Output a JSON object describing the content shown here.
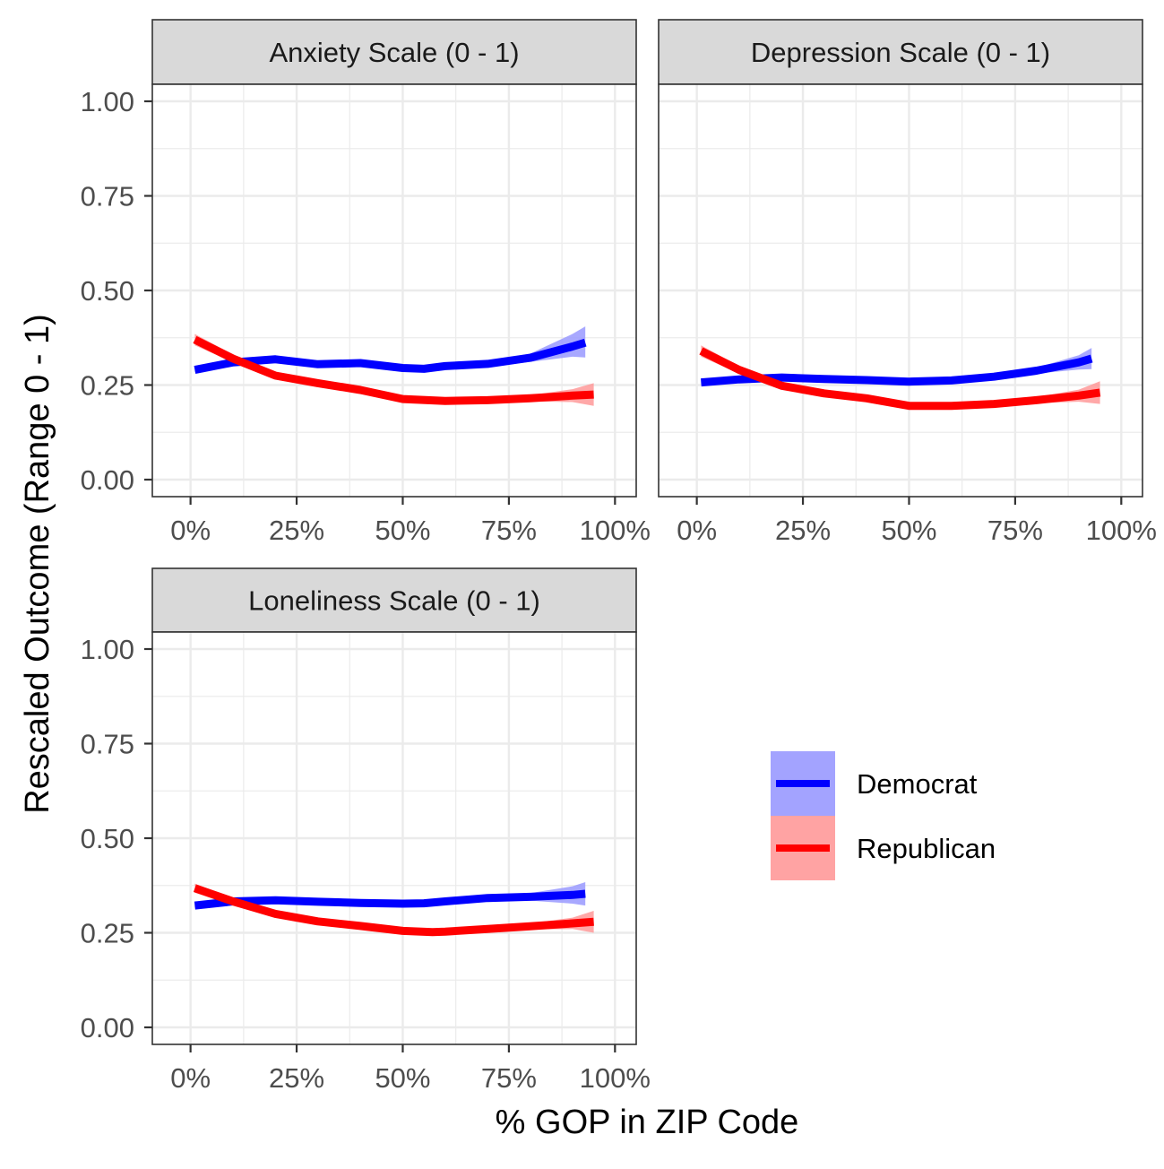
{
  "chart_data": {
    "type": "line",
    "xlabel": "% GOP in ZIP Code",
    "ylabel": "Rescaled Outcome (Range 0 - 1)",
    "x_ticks": [
      "0%",
      "25%",
      "50%",
      "75%",
      "100%"
    ],
    "y_ticks": [
      "0.00",
      "0.25",
      "0.50",
      "0.75",
      "1.00"
    ],
    "xlim": [
      -0.09,
      1.05
    ],
    "ylim": [
      -0.045,
      1.045
    ],
    "grid": true,
    "colors": {
      "Democrat": "#0000ff",
      "Republican": "#ff0000",
      "Democrat_band": "#9999ff",
      "Republican_band": "#ff9999"
    },
    "legend": {
      "position": "bottom-right",
      "entries": [
        {
          "name": "Democrat",
          "color": "#0000ff"
        },
        {
          "name": "Republican",
          "color": "#ff0000"
        }
      ]
    },
    "panels": [
      {
        "title": "Anxiety Scale (0 - 1)",
        "series": [
          {
            "name": "Democrat",
            "x": [
              0.01,
              0.1,
              0.2,
              0.3,
              0.4,
              0.5,
              0.55,
              0.6,
              0.7,
              0.8,
              0.9,
              0.93
            ],
            "y": [
              0.29,
              0.31,
              0.318,
              0.305,
              0.308,
              0.295,
              0.293,
              0.3,
              0.306,
              0.322,
              0.352,
              0.362
            ],
            "lower": [
              0.285,
              0.303,
              0.311,
              0.299,
              0.302,
              0.289,
              0.287,
              0.293,
              0.298,
              0.311,
              0.325,
              0.323
            ],
            "upper": [
              0.295,
              0.317,
              0.325,
              0.311,
              0.314,
              0.301,
              0.299,
              0.307,
              0.314,
              0.333,
              0.385,
              0.405
            ]
          },
          {
            "name": "Republican",
            "x": [
              0.01,
              0.1,
              0.2,
              0.3,
              0.4,
              0.5,
              0.6,
              0.7,
              0.8,
              0.9,
              0.95
            ],
            "y": [
              0.37,
              0.32,
              0.275,
              0.255,
              0.237,
              0.213,
              0.208,
              0.21,
              0.215,
              0.222,
              0.225
            ],
            "lower": [
              0.355,
              0.31,
              0.268,
              0.249,
              0.231,
              0.207,
              0.202,
              0.204,
              0.207,
              0.205,
              0.195
            ],
            "upper": [
              0.385,
              0.33,
              0.282,
              0.261,
              0.243,
              0.219,
              0.214,
              0.216,
              0.223,
              0.239,
              0.255
            ]
          }
        ]
      },
      {
        "title": "Depression Scale (0 - 1)",
        "series": [
          {
            "name": "Democrat",
            "x": [
              0.01,
              0.1,
              0.2,
              0.3,
              0.4,
              0.5,
              0.6,
              0.7,
              0.8,
              0.9,
              0.93
            ],
            "y": [
              0.257,
              0.265,
              0.27,
              0.266,
              0.263,
              0.259,
              0.262,
              0.272,
              0.288,
              0.31,
              0.32
            ],
            "lower": [
              0.252,
              0.26,
              0.265,
              0.261,
              0.258,
              0.254,
              0.257,
              0.266,
              0.28,
              0.291,
              0.292
            ],
            "upper": [
              0.262,
              0.27,
              0.275,
              0.271,
              0.268,
              0.264,
              0.267,
              0.278,
              0.296,
              0.329,
              0.348
            ]
          },
          {
            "name": "Republican",
            "x": [
              0.01,
              0.1,
              0.2,
              0.3,
              0.4,
              0.5,
              0.6,
              0.7,
              0.8,
              0.9,
              0.95
            ],
            "y": [
              0.34,
              0.29,
              0.248,
              0.228,
              0.215,
              0.195,
              0.195,
              0.2,
              0.21,
              0.222,
              0.23
            ],
            "lower": [
              0.325,
              0.28,
              0.241,
              0.222,
              0.209,
              0.189,
              0.189,
              0.194,
              0.202,
              0.206,
              0.2
            ],
            "upper": [
              0.355,
              0.3,
              0.255,
              0.234,
              0.221,
              0.201,
              0.201,
              0.206,
              0.218,
              0.238,
              0.26
            ]
          }
        ]
      },
      {
        "title": "Loneliness Scale (0 - 1)",
        "series": [
          {
            "name": "Democrat",
            "x": [
              0.01,
              0.1,
              0.2,
              0.3,
              0.4,
              0.5,
              0.55,
              0.6,
              0.7,
              0.8,
              0.9,
              0.93
            ],
            "y": [
              0.322,
              0.333,
              0.336,
              0.332,
              0.329,
              0.327,
              0.328,
              0.333,
              0.342,
              0.345,
              0.35,
              0.353
            ],
            "lower": [
              0.317,
              0.328,
              0.331,
              0.327,
              0.324,
              0.322,
              0.323,
              0.327,
              0.335,
              0.335,
              0.327,
              0.322
            ],
            "upper": [
              0.327,
              0.338,
              0.341,
              0.337,
              0.334,
              0.332,
              0.333,
              0.339,
              0.349,
              0.355,
              0.373,
              0.384
            ]
          },
          {
            "name": "Republican",
            "x": [
              0.01,
              0.1,
              0.2,
              0.3,
              0.4,
              0.5,
              0.57,
              0.6,
              0.7,
              0.8,
              0.9,
              0.95
            ],
            "y": [
              0.368,
              0.333,
              0.3,
              0.28,
              0.268,
              0.255,
              0.252,
              0.253,
              0.26,
              0.267,
              0.275,
              0.279
            ],
            "lower": [
              0.356,
              0.325,
              0.294,
              0.274,
              0.262,
              0.249,
              0.246,
              0.247,
              0.253,
              0.259,
              0.26,
              0.25
            ],
            "upper": [
              0.38,
              0.341,
              0.306,
              0.286,
              0.274,
              0.261,
              0.258,
              0.259,
              0.267,
              0.275,
              0.29,
              0.308
            ]
          }
        ]
      }
    ]
  }
}
